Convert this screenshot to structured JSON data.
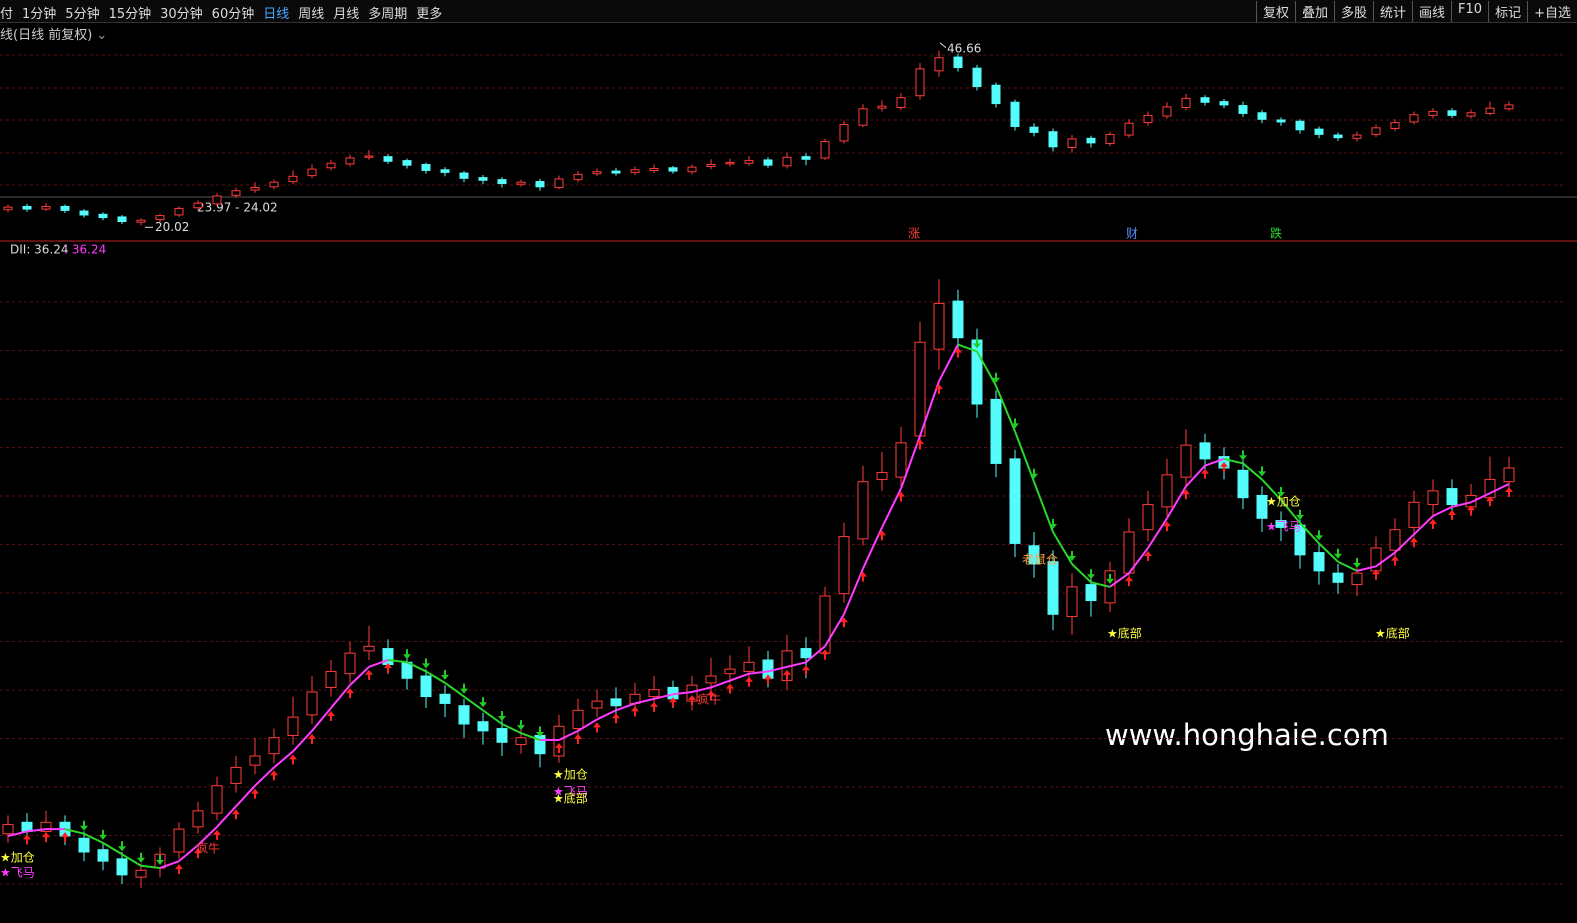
{
  "toolbar": {
    "left": [
      "付",
      "1分钟",
      "5分钟",
      "15分钟",
      "30分钟",
      "60分钟",
      "日线",
      "周线",
      "月线",
      "多周期",
      "更多"
    ],
    "active": "日线",
    "right": [
      "复权",
      "叠加",
      "多股",
      "统计",
      "画线",
      "F10",
      "标记",
      "+自选"
    ]
  },
  "subheader": "线(日线 前复权)",
  "chart_data": {
    "type": "candlestick",
    "open": [
      22.4,
      22.9,
      22.5,
      22.9,
      22.2,
      21.7,
      21.3,
      20.5,
      20.9,
      21.6,
      22.7,
      23.3,
      24.6,
      25.4,
      25.9,
      26.7,
      27.6,
      28.8,
      29.4,
      30.4,
      30.5,
      29.9,
      29.3,
      28.5,
      28.0,
      27.3,
      27.0,
      26.3,
      26.7,
      25.8,
      27.0,
      27.9,
      28.3,
      28.1,
      28.4,
      28.8,
      28.2,
      29.0,
      29.4,
      29.5,
      30.0,
      29.1,
      30.5,
      30.3,
      32.9,
      35.3,
      37.9,
      38.0,
      39.8,
      43.6,
      45.7,
      44.0,
      41.4,
      38.8,
      35.0,
      34.3,
      31.9,
      33.3,
      32.5,
      33.8,
      35.7,
      36.7,
      38.0,
      39.5,
      38.9,
      38.3,
      37.2,
      36.1,
      35.9,
      34.7,
      33.8,
      33.3,
      33.9,
      34.8,
      35.8,
      36.8,
      37.5,
      36.7,
      37.1,
      37.8
    ],
    "high": [
      23.2,
      23.3,
      23.4,
      23.2,
      22.5,
      22.0,
      21.6,
      21.1,
      21.8,
      22.9,
      23.8,
      24.9,
      25.8,
      26.6,
      27.0,
      28.4,
      29.3,
      30.0,
      30.8,
      31.5,
      30.9,
      30.2,
      29.6,
      28.9,
      28.3,
      27.7,
      27.4,
      27.0,
      27.1,
      27.6,
      28.3,
      28.7,
      28.8,
      29.0,
      29.3,
      29.1,
      29.3,
      30.1,
      30.2,
      30.6,
      30.4,
      31.1,
      31.0,
      33.2,
      36.0,
      38.5,
      39.1,
      40.2,
      44.8,
      46.66,
      46.2,
      44.5,
      41.8,
      39.2,
      35.6,
      34.8,
      33.8,
      33.7,
      34.3,
      36.2,
      37.4,
      38.8,
      40.1,
      39.9,
      39.3,
      38.9,
      37.6,
      36.5,
      36.2,
      35.1,
      34.2,
      34.3,
      35.4,
      36.2,
      37.4,
      37.9,
      37.9,
      37.7,
      38.9,
      38.9
    ],
    "low": [
      22.0,
      22.1,
      22.2,
      21.9,
      21.2,
      20.8,
      20.2,
      20.02,
      20.5,
      21.3,
      22.4,
      23.0,
      24.2,
      25.0,
      25.5,
      26.3,
      27.2,
      28.4,
      29.0,
      30.0,
      29.4,
      28.7,
      27.9,
      27.5,
      26.6,
      26.3,
      25.8,
      25.9,
      25.3,
      25.5,
      26.6,
      27.5,
      27.6,
      27.7,
      28.0,
      27.9,
      27.8,
      28.6,
      29.0,
      29.1,
      28.8,
      28.7,
      29.2,
      30.0,
      32.5,
      35.0,
      37.4,
      37.6,
      39.2,
      42.7,
      43.5,
      40.6,
      38.0,
      34.5,
      33.6,
      31.3,
      31.1,
      31.9,
      32.1,
      33.4,
      35.2,
      36.3,
      37.6,
      38.3,
      37.9,
      36.6,
      35.6,
      35.2,
      34.0,
      33.3,
      32.9,
      32.8,
      33.5,
      34.4,
      35.4,
      36.3,
      36.4,
      36.3,
      36.8,
      37.5
    ],
    "close": [
      22.8,
      22.5,
      22.9,
      22.3,
      21.6,
      21.2,
      20.6,
      20.8,
      21.5,
      22.6,
      23.4,
      24.5,
      25.3,
      25.8,
      26.6,
      27.5,
      28.6,
      29.5,
      30.3,
      30.6,
      29.8,
      29.2,
      28.4,
      28.1,
      27.2,
      26.9,
      26.4,
      26.6,
      25.9,
      27.1,
      27.8,
      28.2,
      28.0,
      28.5,
      28.7,
      28.3,
      28.9,
      29.3,
      29.6,
      29.9,
      29.2,
      30.4,
      30.1,
      32.8,
      35.4,
      37.8,
      38.2,
      39.5,
      43.9,
      45.6,
      44.1,
      41.2,
      38.6,
      35.1,
      34.2,
      32.0,
      33.2,
      32.6,
      33.9,
      35.6,
      36.8,
      38.1,
      39.4,
      38.8,
      38.4,
      37.1,
      36.2,
      35.8,
      34.6,
      33.9,
      33.4,
      33.8,
      34.9,
      35.7,
      36.9,
      37.4,
      36.8,
      37.2,
      37.9,
      38.4
    ],
    "trend": [
      22.3,
      22.5,
      22.6,
      22.6,
      22.4,
      22.0,
      21.5,
      21.0,
      20.9,
      21.2,
      21.9,
      22.7,
      23.6,
      24.5,
      25.3,
      26.0,
      26.9,
      27.9,
      28.9,
      29.7,
      30.0,
      29.9,
      29.5,
      29.0,
      28.4,
      27.8,
      27.2,
      26.8,
      26.5,
      26.5,
      26.9,
      27.4,
      27.8,
      28.1,
      28.3,
      28.5,
      28.6,
      28.8,
      29.1,
      29.4,
      29.5,
      29.7,
      29.9,
      30.6,
      32.0,
      34.0,
      35.8,
      37.5,
      39.8,
      42.2,
      43.8,
      43.5,
      42.0,
      40.0,
      37.8,
      35.6,
      34.2,
      33.4,
      33.2,
      33.8,
      34.9,
      36.2,
      37.6,
      38.5,
      38.8,
      38.6,
      37.9,
      37.0,
      36.0,
      35.1,
      34.3,
      33.9,
      34.1,
      34.7,
      35.5,
      36.3,
      36.7,
      36.9,
      37.3,
      37.7
    ],
    "top_ylim": [
      19,
      48
    ],
    "ylim": [
      19.5,
      47.5
    ],
    "up_color": "#ff3c3c",
    "down_color": "#54fcfc",
    "trend_up_color": "#ff3cff",
    "trend_down_color": "#2ad62a",
    "range_label": "23.97 - 24.02",
    "markers": [
      "涨",
      "财",
      "跌"
    ],
    "indicator_label": "DII: 36.24",
    "indicator_value_label": ": 36.24",
    "annotations": [
      {
        "text": "★加仓",
        "color": "#ffff40"
      },
      {
        "text": "★飞马",
        "color": "#ff40ff"
      },
      {
        "text": "疯牛",
        "color": "#ff3c3c"
      },
      {
        "text": "★加仓",
        "color": "#ffff40"
      },
      {
        "text": "★飞马",
        "color": "#ff40ff"
      },
      {
        "text": "★底部",
        "color": "#ffff40"
      },
      {
        "text": "疯牛",
        "color": "#ff3c3c"
      },
      {
        "text": "老鼠仓",
        "color": "#ffa040"
      },
      {
        "text": "★底部",
        "color": "#ffff40"
      },
      {
        "text": "★加仓",
        "color": "#ffff40"
      },
      {
        "text": "★飞马",
        "color": "#ff40ff"
      },
      {
        "text": "★底部",
        "color": "#ffff40"
      }
    ]
  },
  "watermark": "www.honghaie.com"
}
